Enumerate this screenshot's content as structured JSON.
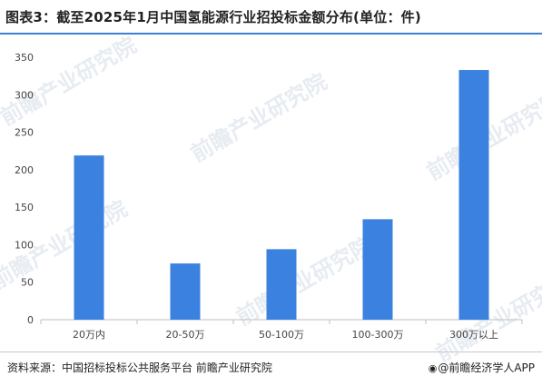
{
  "title": "图表3：截至2025年1月中国氢能源行业招投标金额分布(单位：件)",
  "source": "资料来源：中国招标投标公共服务平台 前瞻产业研究院",
  "brand": "@前瞻经济学人APP",
  "watermark": "前瞻产业研究院",
  "colors": {
    "bar": "#3b82e0",
    "accent": "#3b7fd6"
  },
  "chart_data": {
    "type": "bar",
    "categories": [
      "20万内",
      "20-50万",
      "50-100万",
      "100-300万",
      "300万以上"
    ],
    "values": [
      219,
      75,
      94,
      134,
      333
    ],
    "ylim": [
      0,
      350
    ],
    "yticks": [
      0,
      50,
      100,
      150,
      200,
      250,
      300,
      350
    ],
    "grid": false,
    "title": "",
    "xlabel": "",
    "ylabel": ""
  }
}
